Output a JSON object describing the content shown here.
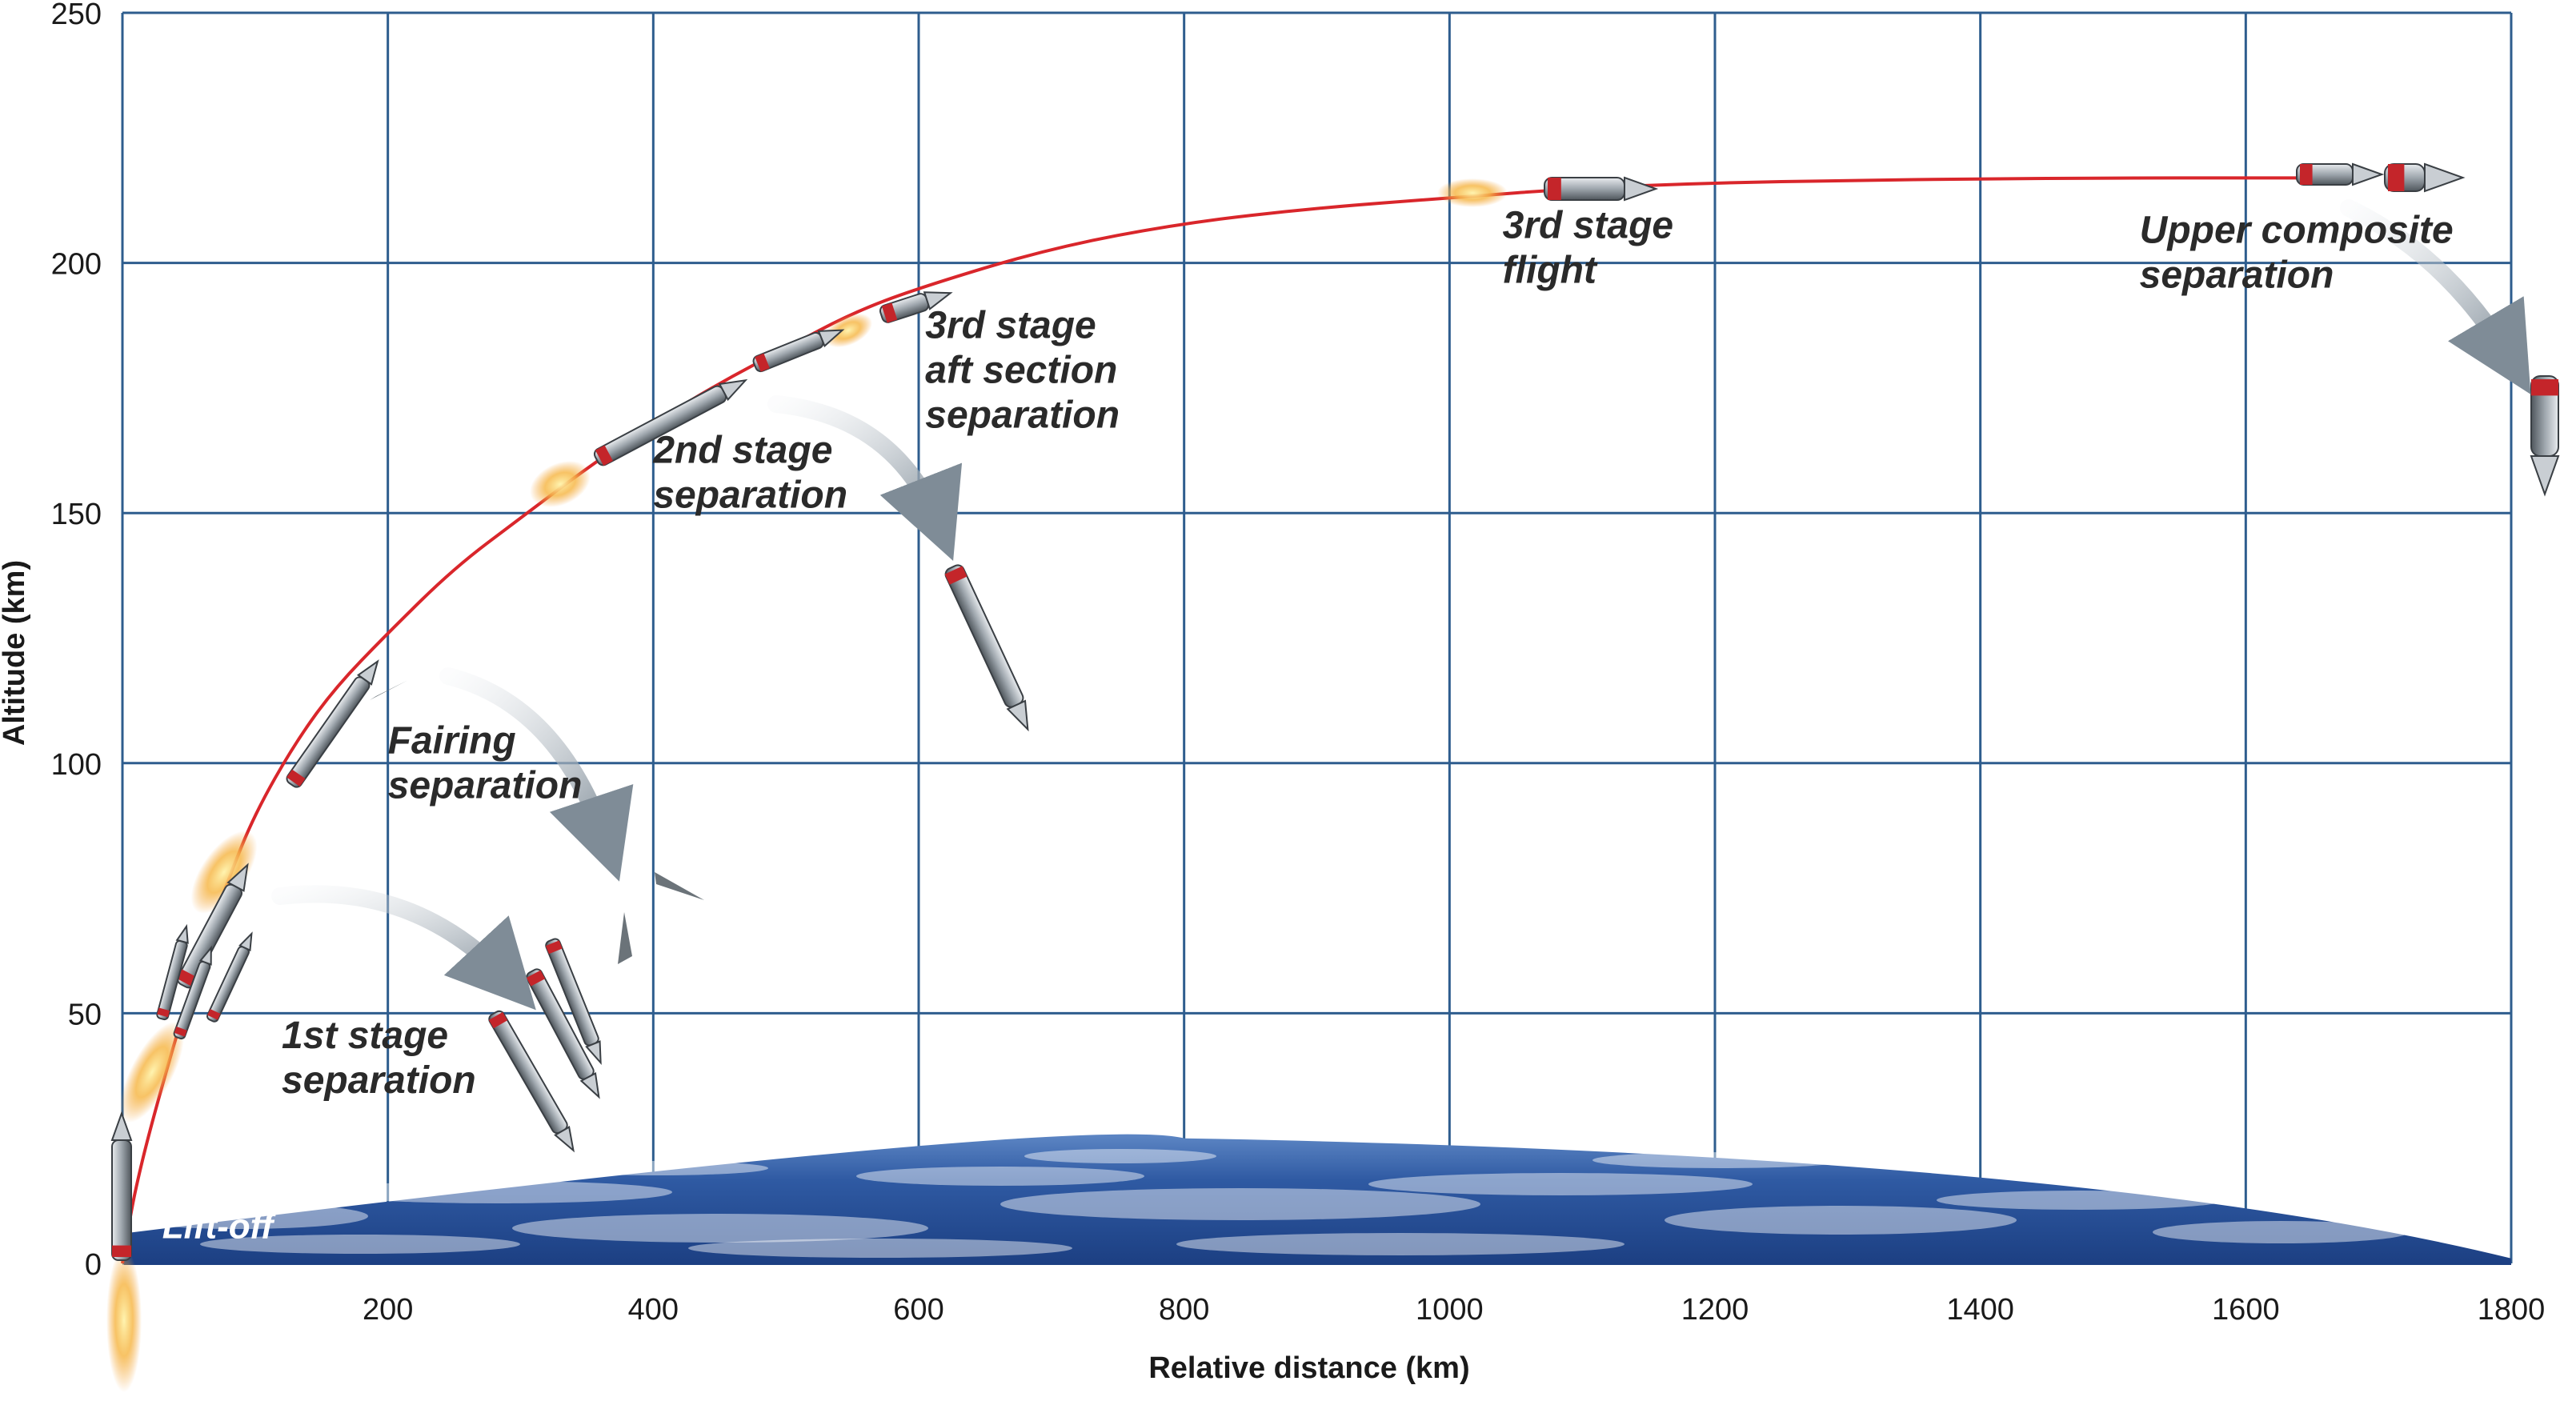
{
  "chart_data": {
    "type": "line",
    "xlabel": "Relative distance (km)",
    "ylabel": "Altitude (km)",
    "xlim": [
      0,
      1800
    ],
    "ylim": [
      0,
      250
    ],
    "x_ticks": [
      "200",
      "400",
      "600",
      "800",
      "1000",
      "1200",
      "1400",
      "1600",
      "1800"
    ],
    "y_ticks": [
      "0",
      "50",
      "100",
      "150",
      "200",
      "250"
    ],
    "grid": true,
    "series": [
      {
        "color": "#d9262b",
        "x": [
          0,
          5,
          10,
          20,
          40,
          60,
          80,
          100,
          130,
          160,
          200,
          250,
          300,
          350,
          400,
          450,
          500,
          550,
          600,
          700,
          800,
          900,
          1000,
          1100,
          1200,
          1300,
          1400,
          1500,
          1600,
          1640
        ],
        "y": [
          0,
          8,
          15,
          26,
          45,
          62,
          77,
          90,
          104,
          115,
          126,
          139,
          149,
          159,
          168,
          176,
          183,
          190,
          195,
          203,
          208,
          211,
          213,
          215,
          216,
          216.5,
          216.8,
          217,
          217,
          217
        ]
      }
    ],
    "annotations": [
      {
        "text_lines": [
          "Lift-off"
        ],
        "x": 30,
        "y": 5
      },
      {
        "text_lines": [
          "1st stage",
          "separation"
        ],
        "x": 120,
        "y": 43
      },
      {
        "text_lines": [
          "Fairing",
          "separation"
        ],
        "x": 200,
        "y": 102
      },
      {
        "text_lines": [
          "2nd stage",
          "separation"
        ],
        "x": 400,
        "y": 160
      },
      {
        "text_lines": [
          "3rd stage",
          "aft section",
          "separation"
        ],
        "x": 605,
        "y": 185
      },
      {
        "text_lines": [
          "3rd stage",
          "flight"
        ],
        "x": 1040,
        "y": 205
      },
      {
        "text_lines": [
          "Upper composite",
          "separation"
        ],
        "x": 1520,
        "y": 204
      }
    ],
    "colors": {
      "grid": "#2e5d8e",
      "trajectory": "#d9262b",
      "earth": "#2a56a0",
      "arrow": "#8f9ba6"
    }
  }
}
